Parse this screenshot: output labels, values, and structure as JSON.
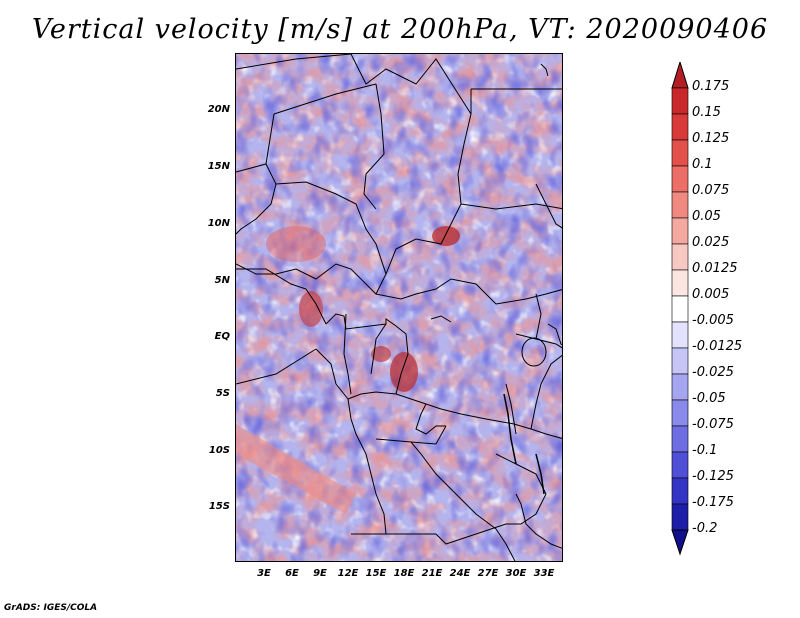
{
  "title": "Vertical velocity [m/s] at 200hPa, VT: 2020090406",
  "credit": "GrADS: IGES/COLA",
  "lat_labels": [
    "20N",
    "15N",
    "10N",
    "5N",
    "EQ",
    "5S",
    "10S",
    "15S"
  ],
  "lon_labels": [
    "3E",
    "6E",
    "9E",
    "12E",
    "15E",
    "18E",
    "21E",
    "24E",
    "27E",
    "30E",
    "33E"
  ],
  "colorbar": {
    "levels": [
      "0.175",
      "0.15",
      "0.125",
      "0.1",
      "0.075",
      "0.05",
      "0.025",
      "0.0125",
      "0.005",
      "-0.005",
      "-0.0125",
      "-0.025",
      "-0.05",
      "-0.075",
      "-0.1",
      "-0.125",
      "-0.175",
      "-0.2"
    ],
    "colors": [
      "#b21e24",
      "#c8282c",
      "#d83a3a",
      "#e4514d",
      "#ec6e66",
      "#f08a80",
      "#f4a9a0",
      "#f8c9c2",
      "#fce6e2",
      "#ffffff",
      "#e2e2fc",
      "#c6c6f6",
      "#a6a6f0",
      "#8a8aea",
      "#6e6ee2",
      "#5050d6",
      "#3434c4",
      "#1e1ea8",
      "#10108c"
    ]
  }
}
